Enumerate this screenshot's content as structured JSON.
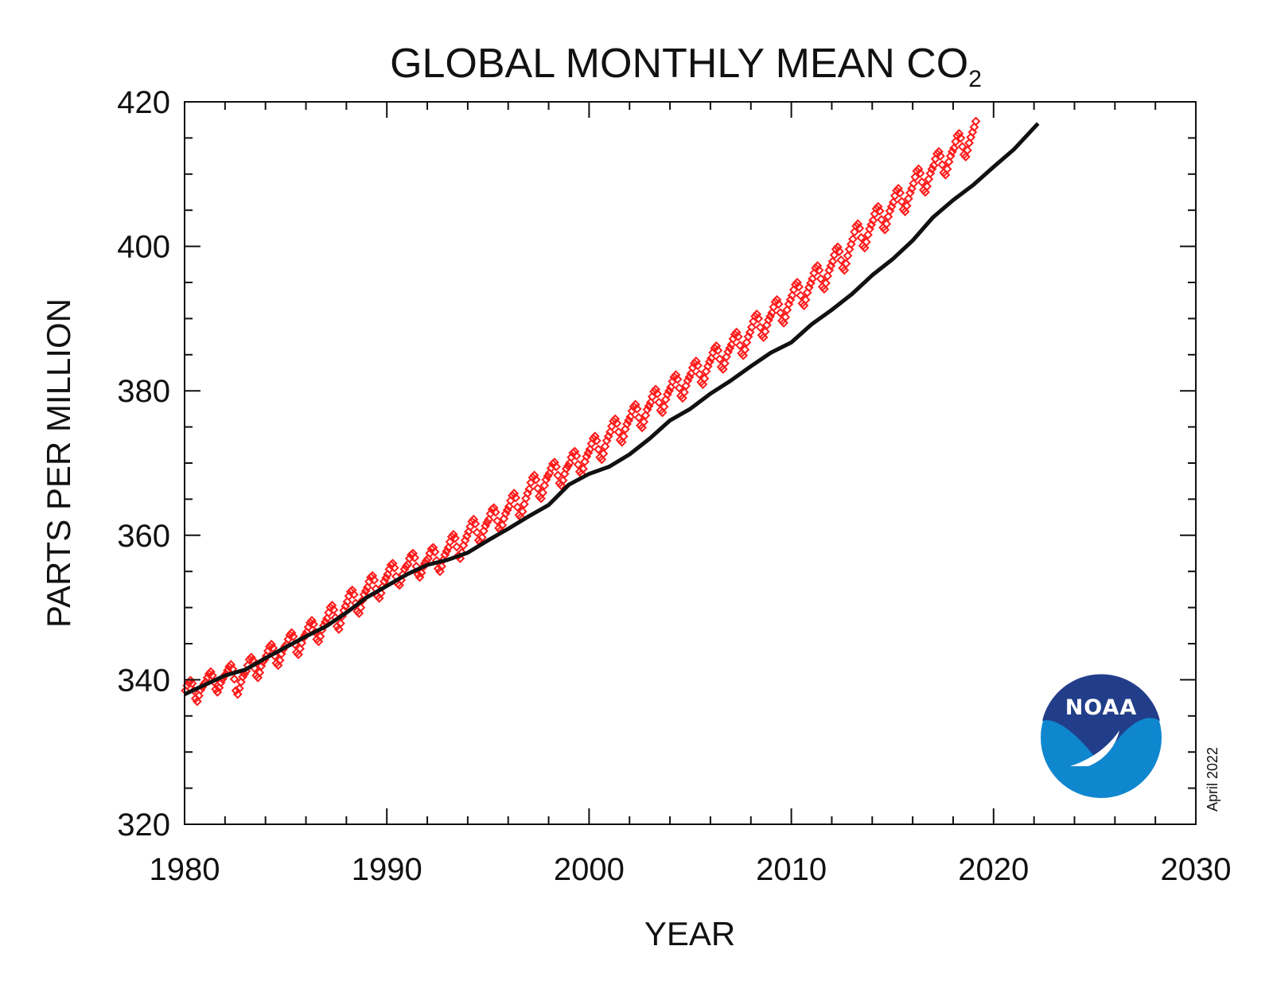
{
  "chart_data": {
    "type": "line",
    "title": "GLOBAL MONTHLY MEAN CO",
    "title_subscript": "2",
    "xlabel": "YEAR",
    "ylabel": "PARTS PER MILLION",
    "xlim": [
      1980,
      2030
    ],
    "ylim": [
      320,
      420
    ],
    "x_ticks": [
      1980,
      1990,
      2000,
      2010,
      2020,
      2030
    ],
    "y_ticks": [
      320,
      340,
      360,
      380,
      400,
      420
    ],
    "x_tick_labels": [
      "1980",
      "1990",
      "2000",
      "2010",
      "2020",
      "2030"
    ],
    "y_tick_labels": [
      "320",
      "340",
      "360",
      "380",
      "400",
      "420"
    ],
    "x_minor_step": 2,
    "y_minor_step": 5,
    "grid": false,
    "date_stamp": "April 2022",
    "logo_text": "NOAA",
    "series": [
      {
        "role": "monthly mean",
        "marker": "diamond",
        "color": "#ff1a1a",
        "x_start": 1980.042,
        "x_step": 0.08333,
        "values": [
          338.5,
          339.2,
          339.6,
          339.9,
          339.5,
          338.5,
          337.4,
          337.0,
          337.8,
          338.6,
          339.0,
          339.4,
          339.7,
          340.3,
          340.8,
          341.1,
          340.6,
          339.7,
          338.7,
          338.3,
          338.9,
          339.6,
          340.1,
          340.5,
          340.8,
          341.3,
          341.8,
          342.1,
          341.5,
          340.1,
          338.5,
          338.0,
          338.8,
          339.7,
          340.4,
          340.8,
          341.2,
          342.0,
          342.8,
          343.1,
          342.7,
          341.6,
          340.6,
          340.3,
          341.0,
          341.9,
          342.5,
          342.8,
          343.3,
          344.0,
          344.6,
          344.9,
          344.4,
          343.3,
          342.3,
          342.0,
          342.7,
          343.6,
          344.2,
          344.6,
          344.9,
          345.6,
          346.2,
          346.5,
          346.0,
          344.9,
          343.8,
          343.5,
          344.3,
          345.1,
          345.8,
          346.2,
          346.6,
          347.3,
          347.9,
          348.2,
          347.7,
          346.6,
          345.6,
          345.3,
          346.0,
          346.9,
          347.5,
          348.0,
          348.5,
          349.3,
          350.0,
          350.3,
          349.7,
          348.6,
          347.4,
          347.0,
          347.8,
          348.8,
          349.6,
          350.2,
          350.8,
          351.6,
          352.2,
          352.4,
          351.8,
          350.6,
          349.5,
          349.2,
          350.0,
          351.0,
          351.8,
          352.3,
          352.8,
          353.6,
          354.2,
          354.4,
          353.8,
          352.6,
          351.6,
          351.3,
          352.0,
          352.9,
          353.6,
          354.1,
          354.6,
          355.3,
          355.9,
          356.1,
          355.5,
          354.3,
          353.3,
          353.1,
          353.8,
          354.6,
          355.3,
          355.7,
          356.0,
          356.8,
          357.3,
          357.5,
          356.9,
          355.7,
          354.6,
          354.2,
          354.8,
          355.6,
          356.1,
          356.5,
          356.8,
          357.5,
          358.1,
          358.3,
          357.7,
          356.5,
          355.4,
          355.0,
          355.7,
          356.6,
          357.3,
          357.8,
          358.3,
          359.1,
          359.8,
          360.1,
          359.6,
          358.4,
          357.2,
          356.8,
          357.6,
          358.6,
          359.3,
          359.9,
          360.5,
          361.2,
          361.9,
          362.2,
          361.6,
          360.4,
          359.3,
          359.0,
          359.7,
          360.6,
          361.3,
          361.8,
          362.2,
          363.0,
          363.6,
          363.8,
          363.2,
          362.0,
          361.0,
          360.7,
          361.4,
          362.3,
          363.0,
          363.5,
          364.0,
          364.8,
          365.5,
          365.8,
          365.2,
          363.9,
          362.8,
          362.5,
          363.3,
          364.3,
          365.1,
          365.8,
          366.4,
          367.3,
          368.0,
          368.3,
          367.7,
          366.5,
          365.4,
          365.1,
          365.9,
          366.9,
          367.7,
          368.2,
          368.6,
          369.3,
          369.9,
          370.1,
          369.5,
          368.3,
          367.2,
          366.9,
          367.6,
          368.5,
          369.2,
          369.6,
          370.0,
          370.8,
          371.4,
          371.6,
          371.0,
          369.8,
          368.8,
          368.5,
          369.2,
          370.2,
          370.9,
          371.4,
          371.9,
          372.7,
          373.4,
          373.7,
          373.1,
          371.9,
          370.8,
          370.5,
          371.3,
          372.3,
          373.1,
          373.7,
          374.3,
          375.1,
          375.8,
          376.1,
          375.5,
          374.3,
          373.2,
          372.9,
          373.7,
          374.7,
          375.4,
          375.9,
          376.4,
          377.2,
          377.8,
          378.1,
          377.5,
          376.3,
          375.2,
          374.9,
          375.7,
          376.6,
          377.4,
          377.9,
          378.4,
          379.2,
          379.9,
          380.2,
          379.6,
          378.4,
          377.3,
          377.0,
          377.8,
          378.8,
          379.5,
          380.0,
          380.5,
          381.3,
          381.9,
          382.2,
          381.6,
          380.4,
          379.3,
          379.0,
          379.8,
          380.7,
          381.4,
          381.9,
          382.4,
          383.2,
          383.8,
          384.1,
          383.5,
          382.3,
          381.2,
          380.9,
          381.7,
          382.7,
          383.4,
          384.0,
          384.5,
          385.3,
          385.9,
          386.2,
          385.6,
          384.4,
          383.3,
          383.0,
          383.8,
          384.7,
          385.4,
          385.9,
          386.4,
          387.2,
          387.8,
          388.1,
          387.5,
          386.3,
          385.2,
          384.9,
          385.7,
          386.7,
          387.5,
          388.1,
          388.8,
          389.6,
          390.3,
          390.6,
          390.0,
          388.8,
          387.7,
          387.4,
          388.2,
          389.1,
          389.8,
          390.3,
          390.8,
          391.6,
          392.3,
          392.6,
          392.0,
          390.8,
          389.7,
          389.4,
          390.2,
          391.2,
          392.0,
          392.6,
          393.2,
          394.0,
          394.7,
          395.0,
          394.4,
          393.2,
          392.1,
          391.8,
          392.6,
          393.6,
          394.3,
          394.9,
          395.5,
          396.3,
          397.0,
          397.3,
          396.7,
          395.5,
          394.4,
          394.1,
          394.9,
          395.9,
          396.7,
          397.3,
          397.9,
          398.8,
          399.6,
          399.9,
          399.3,
          398.1,
          397.0,
          396.7,
          397.6,
          398.7,
          399.6,
          400.3,
          401.0,
          402.0,
          402.8,
          403.1,
          402.5,
          401.2,
          400.1,
          399.8,
          400.6,
          401.6,
          402.4,
          403.0,
          403.6,
          404.5,
          405.2,
          405.5,
          404.9,
          403.7,
          402.6,
          402.3,
          403.1,
          404.1,
          404.9,
          405.5,
          406.1,
          407.0,
          407.7,
          408.0,
          407.4,
          406.2,
          405.1,
          404.8,
          405.6,
          406.6,
          407.4,
          408.0,
          408.7,
          409.6,
          410.4,
          410.7,
          410.1,
          408.9,
          407.8,
          407.5,
          408.3,
          409.3,
          410.1,
          410.7,
          411.2,
          412.1,
          412.8,
          413.1,
          412.5,
          411.3,
          410.2,
          409.9,
          410.7,
          411.7,
          412.5,
          413.1,
          413.6,
          414.5,
          415.3,
          415.6,
          415.0,
          413.8,
          412.7,
          412.4,
          413.3,
          414.3,
          415.1,
          415.8,
          416.5,
          417.3
        ]
      },
      {
        "role": "trend",
        "marker": "line",
        "color": "#111111",
        "x": [
          1980.0,
          1981.0,
          1982.0,
          1983.0,
          1984.0,
          1985.0,
          1986.0,
          1987.0,
          1988.0,
          1989.0,
          1990.0,
          1991.0,
          1992.0,
          1993.0,
          1994.0,
          1995.0,
          1996.0,
          1997.0,
          1998.0,
          1999.0,
          2000.0,
          2001.0,
          2002.0,
          2003.0,
          2004.0,
          2005.0,
          2006.0,
          2007.0,
          2008.0,
          2009.0,
          2010.0,
          2011.0,
          2012.0,
          2013.0,
          2014.0,
          2015.0,
          2016.0,
          2017.0,
          2018.0,
          2019.0,
          2020.0,
          2021.0,
          2022.2
        ],
        "values": [
          338.0,
          339.3,
          340.6,
          341.4,
          343.0,
          344.5,
          346.0,
          347.4,
          349.3,
          351.4,
          353.0,
          354.6,
          355.9,
          356.6,
          357.6,
          359.3,
          360.9,
          362.6,
          364.2,
          367.0,
          368.5,
          369.5,
          371.2,
          373.4,
          375.9,
          377.5,
          379.6,
          381.4,
          383.4,
          385.3,
          386.7,
          389.2,
          391.2,
          393.4,
          396.0,
          398.2,
          400.8,
          404.0,
          406.4,
          408.5,
          411.0,
          413.4,
          417.0
        ]
      }
    ]
  }
}
